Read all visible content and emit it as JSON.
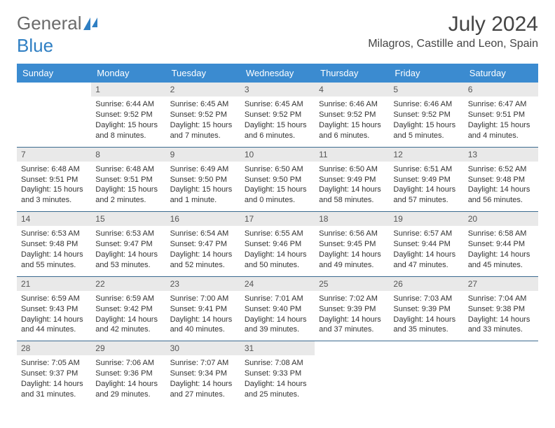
{
  "brand": {
    "part1": "General",
    "part2": "Blue"
  },
  "title": "July 2024",
  "location": "Milagros, Castille and Leon, Spain",
  "colors": {
    "header_bg": "#3b8bd0",
    "rule": "#3b6a8f",
    "daynum_bg": "#e9e9e9"
  },
  "weekdays": [
    "Sunday",
    "Monday",
    "Tuesday",
    "Wednesday",
    "Thursday",
    "Friday",
    "Saturday"
  ],
  "weeks": [
    [
      {
        "empty": true
      },
      {
        "n": "1",
        "sr": "Sunrise: 6:44 AM",
        "ss": "Sunset: 9:52 PM",
        "d1": "Daylight: 15 hours",
        "d2": "and 8 minutes."
      },
      {
        "n": "2",
        "sr": "Sunrise: 6:45 AM",
        "ss": "Sunset: 9:52 PM",
        "d1": "Daylight: 15 hours",
        "d2": "and 7 minutes."
      },
      {
        "n": "3",
        "sr": "Sunrise: 6:45 AM",
        "ss": "Sunset: 9:52 PM",
        "d1": "Daylight: 15 hours",
        "d2": "and 6 minutes."
      },
      {
        "n": "4",
        "sr": "Sunrise: 6:46 AM",
        "ss": "Sunset: 9:52 PM",
        "d1": "Daylight: 15 hours",
        "d2": "and 6 minutes."
      },
      {
        "n": "5",
        "sr": "Sunrise: 6:46 AM",
        "ss": "Sunset: 9:52 PM",
        "d1": "Daylight: 15 hours",
        "d2": "and 5 minutes."
      },
      {
        "n": "6",
        "sr": "Sunrise: 6:47 AM",
        "ss": "Sunset: 9:51 PM",
        "d1": "Daylight: 15 hours",
        "d2": "and 4 minutes."
      }
    ],
    [
      {
        "n": "7",
        "sr": "Sunrise: 6:48 AM",
        "ss": "Sunset: 9:51 PM",
        "d1": "Daylight: 15 hours",
        "d2": "and 3 minutes."
      },
      {
        "n": "8",
        "sr": "Sunrise: 6:48 AM",
        "ss": "Sunset: 9:51 PM",
        "d1": "Daylight: 15 hours",
        "d2": "and 2 minutes."
      },
      {
        "n": "9",
        "sr": "Sunrise: 6:49 AM",
        "ss": "Sunset: 9:50 PM",
        "d1": "Daylight: 15 hours",
        "d2": "and 1 minute."
      },
      {
        "n": "10",
        "sr": "Sunrise: 6:50 AM",
        "ss": "Sunset: 9:50 PM",
        "d1": "Daylight: 15 hours",
        "d2": "and 0 minutes."
      },
      {
        "n": "11",
        "sr": "Sunrise: 6:50 AM",
        "ss": "Sunset: 9:49 PM",
        "d1": "Daylight: 14 hours",
        "d2": "and 58 minutes."
      },
      {
        "n": "12",
        "sr": "Sunrise: 6:51 AM",
        "ss": "Sunset: 9:49 PM",
        "d1": "Daylight: 14 hours",
        "d2": "and 57 minutes."
      },
      {
        "n": "13",
        "sr": "Sunrise: 6:52 AM",
        "ss": "Sunset: 9:48 PM",
        "d1": "Daylight: 14 hours",
        "d2": "and 56 minutes."
      }
    ],
    [
      {
        "n": "14",
        "sr": "Sunrise: 6:53 AM",
        "ss": "Sunset: 9:48 PM",
        "d1": "Daylight: 14 hours",
        "d2": "and 55 minutes."
      },
      {
        "n": "15",
        "sr": "Sunrise: 6:53 AM",
        "ss": "Sunset: 9:47 PM",
        "d1": "Daylight: 14 hours",
        "d2": "and 53 minutes."
      },
      {
        "n": "16",
        "sr": "Sunrise: 6:54 AM",
        "ss": "Sunset: 9:47 PM",
        "d1": "Daylight: 14 hours",
        "d2": "and 52 minutes."
      },
      {
        "n": "17",
        "sr": "Sunrise: 6:55 AM",
        "ss": "Sunset: 9:46 PM",
        "d1": "Daylight: 14 hours",
        "d2": "and 50 minutes."
      },
      {
        "n": "18",
        "sr": "Sunrise: 6:56 AM",
        "ss": "Sunset: 9:45 PM",
        "d1": "Daylight: 14 hours",
        "d2": "and 49 minutes."
      },
      {
        "n": "19",
        "sr": "Sunrise: 6:57 AM",
        "ss": "Sunset: 9:44 PM",
        "d1": "Daylight: 14 hours",
        "d2": "and 47 minutes."
      },
      {
        "n": "20",
        "sr": "Sunrise: 6:58 AM",
        "ss": "Sunset: 9:44 PM",
        "d1": "Daylight: 14 hours",
        "d2": "and 45 minutes."
      }
    ],
    [
      {
        "n": "21",
        "sr": "Sunrise: 6:59 AM",
        "ss": "Sunset: 9:43 PM",
        "d1": "Daylight: 14 hours",
        "d2": "and 44 minutes."
      },
      {
        "n": "22",
        "sr": "Sunrise: 6:59 AM",
        "ss": "Sunset: 9:42 PM",
        "d1": "Daylight: 14 hours",
        "d2": "and 42 minutes."
      },
      {
        "n": "23",
        "sr": "Sunrise: 7:00 AM",
        "ss": "Sunset: 9:41 PM",
        "d1": "Daylight: 14 hours",
        "d2": "and 40 minutes."
      },
      {
        "n": "24",
        "sr": "Sunrise: 7:01 AM",
        "ss": "Sunset: 9:40 PM",
        "d1": "Daylight: 14 hours",
        "d2": "and 39 minutes."
      },
      {
        "n": "25",
        "sr": "Sunrise: 7:02 AM",
        "ss": "Sunset: 9:39 PM",
        "d1": "Daylight: 14 hours",
        "d2": "and 37 minutes."
      },
      {
        "n": "26",
        "sr": "Sunrise: 7:03 AM",
        "ss": "Sunset: 9:39 PM",
        "d1": "Daylight: 14 hours",
        "d2": "and 35 minutes."
      },
      {
        "n": "27",
        "sr": "Sunrise: 7:04 AM",
        "ss": "Sunset: 9:38 PM",
        "d1": "Daylight: 14 hours",
        "d2": "and 33 minutes."
      }
    ],
    [
      {
        "n": "28",
        "sr": "Sunrise: 7:05 AM",
        "ss": "Sunset: 9:37 PM",
        "d1": "Daylight: 14 hours",
        "d2": "and 31 minutes."
      },
      {
        "n": "29",
        "sr": "Sunrise: 7:06 AM",
        "ss": "Sunset: 9:36 PM",
        "d1": "Daylight: 14 hours",
        "d2": "and 29 minutes."
      },
      {
        "n": "30",
        "sr": "Sunrise: 7:07 AM",
        "ss": "Sunset: 9:34 PM",
        "d1": "Daylight: 14 hours",
        "d2": "and 27 minutes."
      },
      {
        "n": "31",
        "sr": "Sunrise: 7:08 AM",
        "ss": "Sunset: 9:33 PM",
        "d1": "Daylight: 14 hours",
        "d2": "and 25 minutes."
      },
      {
        "empty": true
      },
      {
        "empty": true
      },
      {
        "empty": true
      }
    ]
  ]
}
